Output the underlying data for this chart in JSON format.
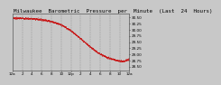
{
  "title": "Milwaukee  Barometric  Pressure  per  Minute  (Last  24  Hours)",
  "ylabel_right_values": [
    30.5,
    30.25,
    30.0,
    29.75,
    29.5,
    29.25,
    29.0,
    28.75,
    28.5
  ],
  "ylim": [
    28.35,
    30.65
  ],
  "xlim": [
    0,
    1440
  ],
  "x_tick_positions": [
    0,
    120,
    240,
    360,
    480,
    600,
    720,
    840,
    960,
    1080,
    1200,
    1320,
    1440
  ],
  "x_labels": [
    "12a",
    "2",
    "4",
    "6",
    "8",
    "10",
    "12p",
    "2",
    "4",
    "6",
    "8",
    "10",
    "12a"
  ],
  "line_color": "#cc0000",
  "bg_color": "#c8c8c8",
  "plot_bg_color": "#c8c8c8",
  "grid_color": "#888888",
  "title_fontsize": 4.2,
  "tick_fontsize": 3.0
}
